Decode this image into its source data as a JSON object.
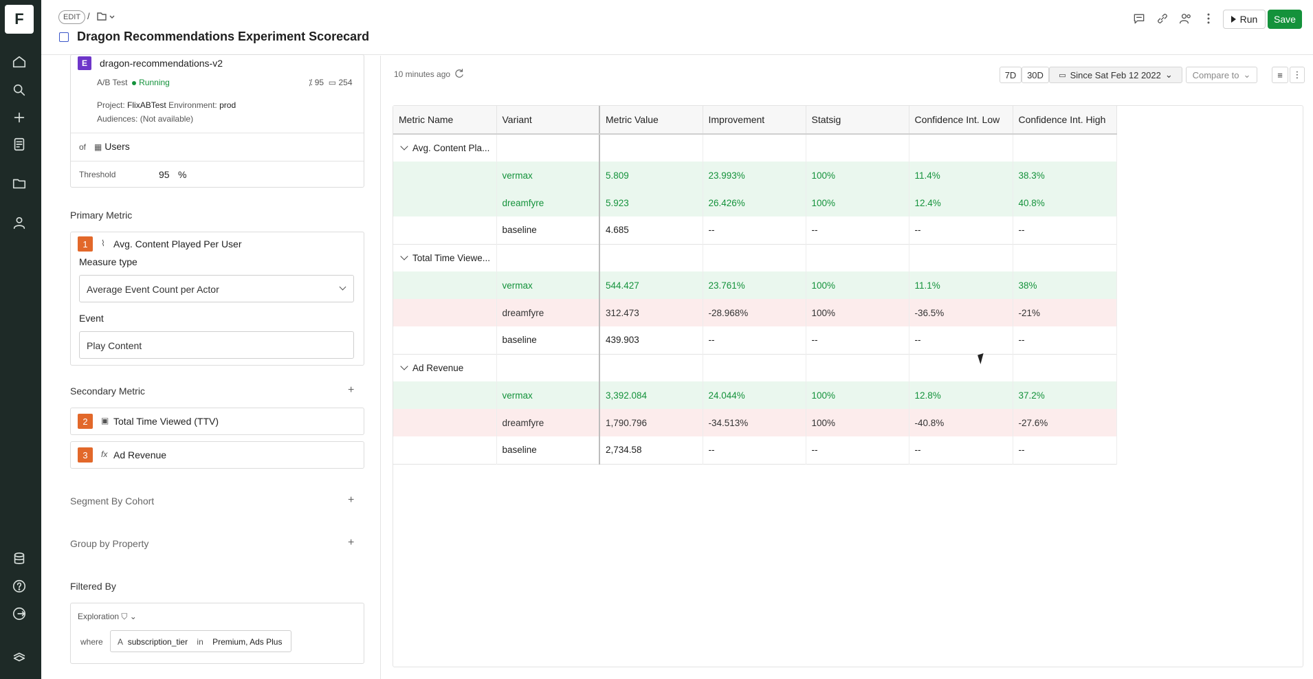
{
  "nav": {
    "logo": "F"
  },
  "header": {
    "edit_label": "EDIT",
    "separator": "/",
    "title": "Dragon Recommendations Experiment Scorecard",
    "run_label": "Run",
    "save_label": "Save"
  },
  "experiment": {
    "badge": "E",
    "name": "dragon-recommendations-v2",
    "type": "A/B Test",
    "status": "Running",
    "percent": "95",
    "count": "254",
    "project_label": "Project:",
    "project": "FlixABTest",
    "environment_label": "Environment:",
    "environment": "prod",
    "audiences_label": "Audiences:",
    "audiences": "(Not available)",
    "of_label": "of",
    "unit": "Users",
    "threshold_label": "Threshold",
    "threshold": "95",
    "threshold_unit": "%"
  },
  "primary": {
    "section": "Primary Metric",
    "num": "1",
    "name": "Avg. Content Played Per User",
    "measure_label": "Measure type",
    "measure_value": "Average Event Count per Actor",
    "event_label": "Event",
    "event_value": "Play Content"
  },
  "secondary": {
    "section": "Secondary Metric",
    "items": [
      {
        "num": "2",
        "name": "Total Time Viewed (TTV)"
      },
      {
        "num": "3",
        "name": "Ad Revenue"
      }
    ]
  },
  "segment_label": "Segment By Cohort",
  "group_label": "Group by Property",
  "filter": {
    "section": "Filtered By",
    "exploration": "Exploration",
    "where": "where",
    "property": "subscription_tier",
    "op": "in",
    "values": "Premium, Ads Plus"
  },
  "toolbar": {
    "updated": "10 minutes ago",
    "r7": "7D",
    "r30": "30D",
    "since": "Since Sat Feb 12 2022",
    "compare": "Compare to"
  },
  "table": {
    "headers": [
      "Metric Name",
      "Variant",
      "Metric Value",
      "Improvement",
      "Statsig",
      "Confidence Int. Low",
      "Confidence Int. High"
    ],
    "groups": [
      {
        "name": "Avg. Content Pla...",
        "rows": [
          [
            "vermax",
            "5.809",
            "23.993%",
            "100%",
            "11.4%",
            "38.3%"
          ],
          [
            "dreamfyre",
            "5.923",
            "26.426%",
            "100%",
            "12.4%",
            "40.8%"
          ],
          [
            "baseline",
            "4.685",
            "--",
            "--",
            "--",
            "--"
          ]
        ]
      },
      {
        "name": "Total Time Viewe...",
        "rows": [
          [
            "vermax",
            "544.427",
            "23.761%",
            "100%",
            "11.1%",
            "38%"
          ],
          [
            "dreamfyre",
            "312.473",
            "-28.968%",
            "100%",
            "-36.5%",
            "-21%"
          ],
          [
            "baseline",
            "439.903",
            "--",
            "--",
            "--",
            "--"
          ]
        ]
      },
      {
        "name": "Ad Revenue",
        "rows": [
          [
            "vermax",
            "3,392.084",
            "24.044%",
            "100%",
            "12.8%",
            "37.2%"
          ],
          [
            "dreamfyre",
            "1,790.796",
            "-34.513%",
            "100%",
            "-40.8%",
            "-27.6%"
          ],
          [
            "baseline",
            "2,734.58",
            "--",
            "--",
            "--",
            "--"
          ]
        ]
      }
    ],
    "row_status": [
      [
        "pos",
        "pos",
        "base"
      ],
      [
        "pos",
        "neg",
        "base"
      ],
      [
        "pos",
        "neg",
        "base"
      ]
    ]
  }
}
